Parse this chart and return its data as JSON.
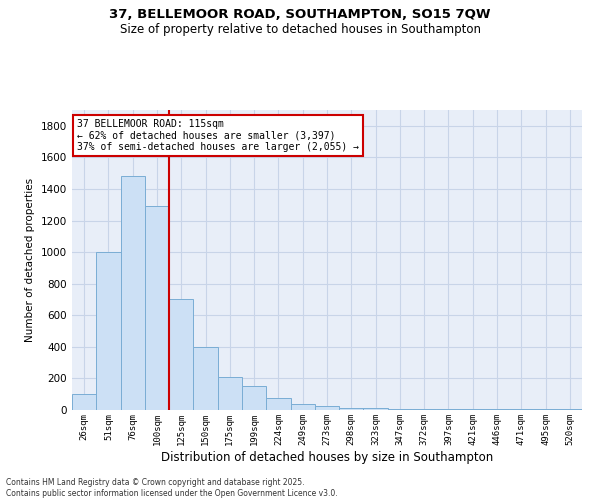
{
  "title_line1": "37, BELLEMOOR ROAD, SOUTHAMPTON, SO15 7QW",
  "title_line2": "Size of property relative to detached houses in Southampton",
  "xlabel": "Distribution of detached houses by size in Southampton",
  "ylabel": "Number of detached properties",
  "categories": [
    "26sqm",
    "51sqm",
    "76sqm",
    "100sqm",
    "125sqm",
    "150sqm",
    "175sqm",
    "199sqm",
    "224sqm",
    "249sqm",
    "273sqm",
    "298sqm",
    "323sqm",
    "347sqm",
    "372sqm",
    "397sqm",
    "421sqm",
    "446sqm",
    "471sqm",
    "495sqm",
    "520sqm"
  ],
  "values": [
    100,
    1000,
    1480,
    1290,
    700,
    400,
    210,
    155,
    75,
    40,
    25,
    15,
    10,
    5,
    5,
    5,
    5,
    5,
    5,
    5,
    5
  ],
  "bar_color": "#cce0f5",
  "bar_edge_color": "#7aadd4",
  "property_bar_index": 3,
  "annotation_title": "37 BELLEMOOR ROAD: 115sqm",
  "annotation_line2": "← 62% of detached houses are smaller (3,397)",
  "annotation_line3": "37% of semi-detached houses are larger (2,055) →",
  "annotation_box_color": "#ffffff",
  "annotation_box_edge": "#cc0000",
  "vline_color": "#cc0000",
  "ylim": [
    0,
    1900
  ],
  "yticks": [
    0,
    200,
    400,
    600,
    800,
    1000,
    1200,
    1400,
    1600,
    1800
  ],
  "grid_color": "#c8d4e8",
  "bg_color": "#e8eef8",
  "footer_line1": "Contains HM Land Registry data © Crown copyright and database right 2025.",
  "footer_line2": "Contains public sector information licensed under the Open Government Licence v3.0."
}
